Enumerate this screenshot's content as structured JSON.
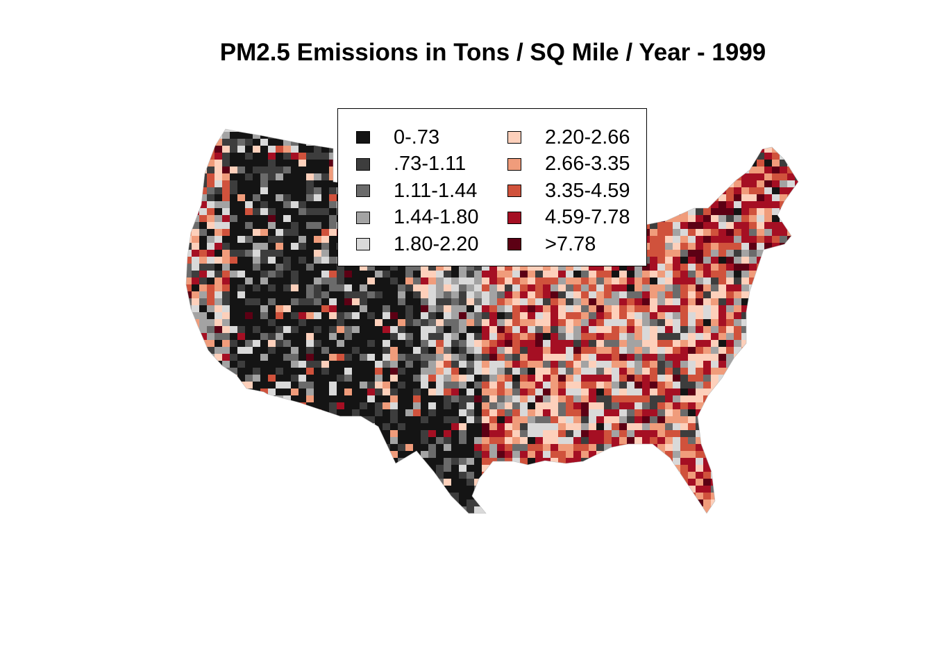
{
  "title": "PM2.5 Emissions in Tons / SQ Mile / Year - 1999",
  "legend": {
    "position": "top-center",
    "columns": 2,
    "items": [
      {
        "label": "0-.73",
        "color": "#141414"
      },
      {
        "label": ".73-1.11",
        "color": "#3d3d3d"
      },
      {
        "label": "1.11-1.44",
        "color": "#6b6b6b"
      },
      {
        "label": "1.44-1.80",
        "color": "#a3a3a3"
      },
      {
        "label": "1.80-2.20",
        "color": "#d9d9d9"
      },
      {
        "label": "2.20-2.66",
        "color": "#fdd0bb"
      },
      {
        "label": "2.66-3.35",
        "color": "#f09c7b"
      },
      {
        "label": "3.35-4.59",
        "color": "#d0523c"
      },
      {
        "label": ">7.78",
        "color": "#5c0014",
        "order": 9
      },
      {
        "label": "4.59-7.78",
        "color": "#a50f23",
        "order": 8
      }
    ]
  },
  "map": {
    "type": "choropleth",
    "region": "Contiguous United States counties",
    "background_color": "#ffffff"
  }
}
